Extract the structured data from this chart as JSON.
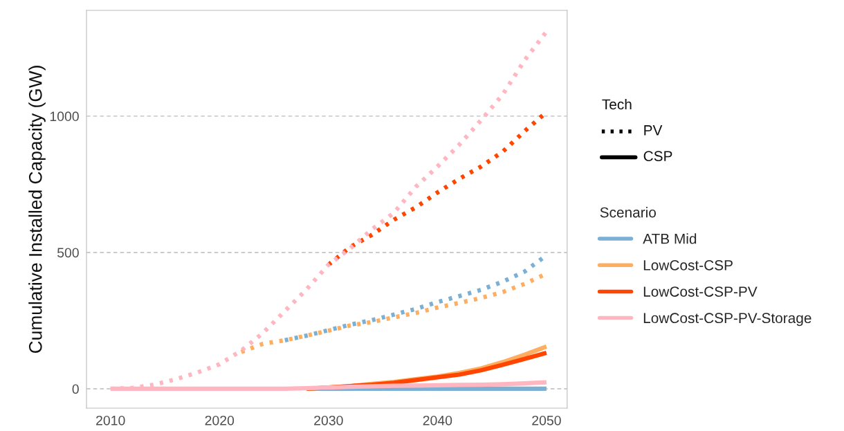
{
  "chart_data": {
    "type": "line",
    "ylabel": "Cumulative Installed Capacity (GW)",
    "x": [
      2010,
      2012,
      2014,
      2016,
      2018,
      2020,
      2022,
      2024,
      2026,
      2028,
      2030,
      2032,
      2034,
      2036,
      2038,
      2040,
      2042,
      2044,
      2046,
      2048,
      2050
    ],
    "xlim": [
      2007.8,
      2051.9
    ],
    "xticks": [
      2010,
      2020,
      2030,
      2040,
      2050
    ],
    "ylim": [
      -71,
      1388
    ],
    "yticks": [
      0,
      500,
      1000
    ],
    "grid": "y",
    "legend": "right",
    "legend_title": "Scenario",
    "marker": "none",
    "annotations": [
      "Tech",
      "PV",
      "CSP"
    ],
    "series": [
      {
        "name": "ATB Mid",
        "color": "#7bafd4",
        "line_style": "dotted",
        "values": [
          null,
          null,
          null,
          null,
          null,
          null,
          null,
          null,
          178,
          195,
          215,
          235,
          252,
          272,
          293,
          318,
          340,
          363,
          393,
          430,
          490
        ]
      },
      {
        "name": "LowCost-CSP",
        "color": "#fdae61",
        "line_style": "dotted",
        "values": [
          null,
          null,
          null,
          null,
          null,
          null,
          135,
          165,
          178,
          195,
          213,
          232,
          245,
          262,
          278,
          298,
          315,
          333,
          355,
          385,
          422
        ]
      },
      {
        "name": "LowCost-CSP-PV",
        "color": "#ff4500",
        "line_style": "dotted",
        "values": [
          null,
          null,
          null,
          null,
          null,
          null,
          null,
          null,
          null,
          null,
          455,
          520,
          565,
          620,
          665,
          720,
          770,
          815,
          870,
          945,
          1015
        ]
      },
      {
        "name": "LowCost-CSP-PV-Storage",
        "color": "#ffb6c1",
        "line_style": "dotted",
        "values": [
          0,
          3,
          15,
          35,
          60,
          90,
          140,
          205,
          285,
          365,
          455,
          515,
          585,
          645,
          740,
          815,
          895,
          985,
          1080,
          1205,
          1310
        ]
      },
      {
        "color": "#7bafd4",
        "line_style": "solid",
        "values": [
          null,
          null,
          null,
          null,
          null,
          null,
          null,
          null,
          null,
          0,
          0,
          0,
          0,
          0,
          0,
          0,
          0,
          0,
          0,
          0,
          0
        ]
      },
      {
        "color": "#fdae61",
        "line_style": "solid",
        "values": [
          null,
          null,
          null,
          null,
          null,
          null,
          null,
          null,
          null,
          0,
          5,
          10,
          18,
          25,
          35,
          45,
          58,
          75,
          98,
          125,
          155
        ]
      },
      {
        "color": "#ff4500",
        "line_style": "solid",
        "values": [
          null,
          null,
          null,
          null,
          null,
          null,
          null,
          null,
          null,
          0,
          5,
          10,
          15,
          22,
          32,
          42,
          52,
          68,
          88,
          110,
          132
        ]
      },
      {
        "color": "#ffb6c1",
        "line_style": "solid",
        "values": [
          0,
          0,
          0,
          0,
          0,
          0,
          0,
          0,
          0,
          2,
          5,
          7,
          9,
          11,
          12,
          13,
          14,
          15,
          17,
          20,
          24
        ]
      }
    ]
  }
}
